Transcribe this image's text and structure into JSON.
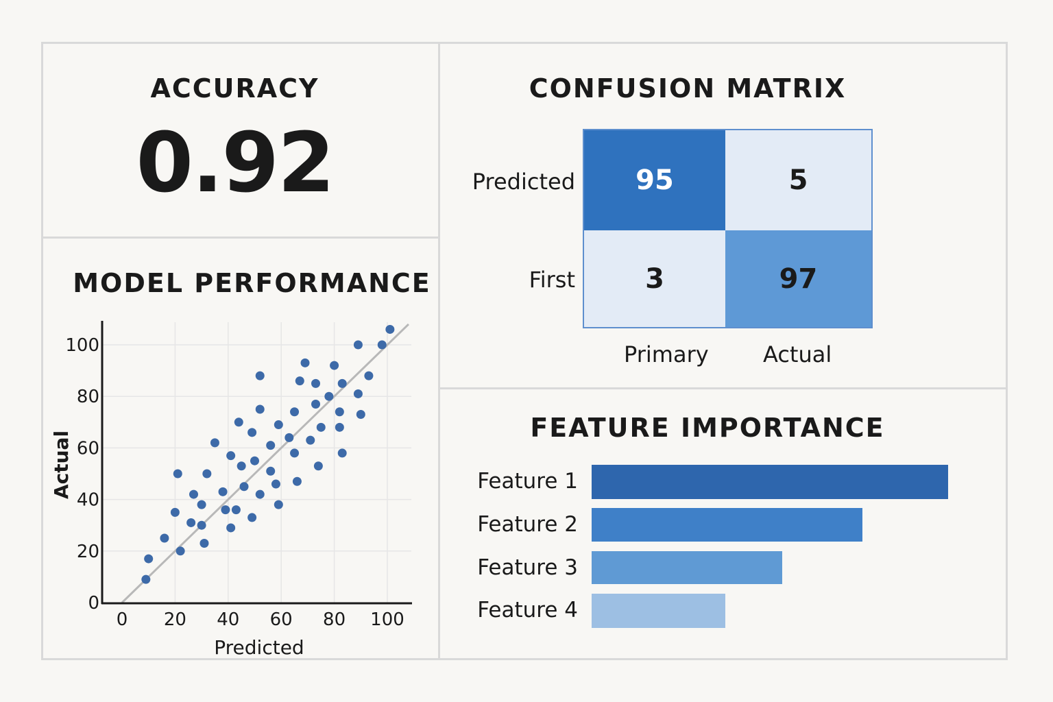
{
  "accuracy": {
    "title": "ACCURACY",
    "value": "0.92"
  },
  "confusion_matrix": {
    "title": "CONFUSION MATRIX",
    "row_labels": [
      "Predicted",
      "First"
    ],
    "col_labels": [
      "Primary",
      "Actual"
    ],
    "cells": [
      [
        "95",
        "5"
      ],
      [
        "3",
        "97"
      ]
    ],
    "colors": {
      "dark": "#2f72be",
      "light": "#e3ebf6",
      "mid": "#5e99d6",
      "border": "#5e8fce"
    }
  },
  "model_performance": {
    "title": "MODEL PERFORMANCE"
  },
  "feature_importance": {
    "title": "FEATURE IMPORTANCE"
  },
  "chart_data": [
    {
      "type": "scatter",
      "title": "MODEL PERFORMANCE",
      "xlabel": "Predicted",
      "ylabel": "Actual",
      "xlim": [
        0,
        110
      ],
      "ylim": [
        0,
        110
      ],
      "xticks": [
        0,
        20,
        40,
        60,
        80,
        100
      ],
      "yticks": [
        0,
        20,
        40,
        60,
        80,
        100
      ],
      "grid": true,
      "reference_line": "y = x",
      "point_color": "#3d6aa8",
      "points": [
        [
          9,
          9
        ],
        [
          10,
          17
        ],
        [
          16,
          25
        ],
        [
          20,
          35
        ],
        [
          21,
          50
        ],
        [
          22,
          20
        ],
        [
          26,
          31
        ],
        [
          27,
          42
        ],
        [
          30,
          38
        ],
        [
          30,
          30
        ],
        [
          31,
          23
        ],
        [
          32,
          50
        ],
        [
          35,
          62
        ],
        [
          38,
          43
        ],
        [
          39,
          36
        ],
        [
          41,
          29
        ],
        [
          41,
          57
        ],
        [
          43,
          36
        ],
        [
          44,
          70
        ],
        [
          45,
          53
        ],
        [
          46,
          45
        ],
        [
          49,
          33
        ],
        [
          49,
          66
        ],
        [
          50,
          55
        ],
        [
          52,
          42
        ],
        [
          52,
          75
        ],
        [
          52,
          88
        ],
        [
          56,
          51
        ],
        [
          56,
          61
        ],
        [
          58,
          46
        ],
        [
          59,
          69
        ],
        [
          59,
          38
        ],
        [
          63,
          64
        ],
        [
          65,
          58
        ],
        [
          65,
          74
        ],
        [
          66,
          47
        ],
        [
          67,
          86
        ],
        [
          69,
          93
        ],
        [
          71,
          63
        ],
        [
          73,
          85
        ],
        [
          73,
          77
        ],
        [
          74,
          53
        ],
        [
          75,
          68
        ],
        [
          78,
          80
        ],
        [
          80,
          92
        ],
        [
          82,
          74
        ],
        [
          82,
          68
        ],
        [
          83,
          58
        ],
        [
          83,
          85
        ],
        [
          89,
          81
        ],
        [
          89,
          100
        ],
        [
          90,
          73
        ],
        [
          93,
          88
        ],
        [
          98,
          100
        ],
        [
          101,
          106
        ]
      ]
    },
    {
      "type": "bar",
      "orientation": "horizontal",
      "title": "FEATURE IMPORTANCE",
      "categories": [
        "Feature 1",
        "Feature 2",
        "Feature 3",
        "Feature 4"
      ],
      "values": [
        1.0,
        0.76,
        0.535,
        0.375
      ],
      "colors": [
        "#2e66ad",
        "#3f80c8",
        "#5f9ad4",
        "#9dbfe3"
      ]
    }
  ]
}
